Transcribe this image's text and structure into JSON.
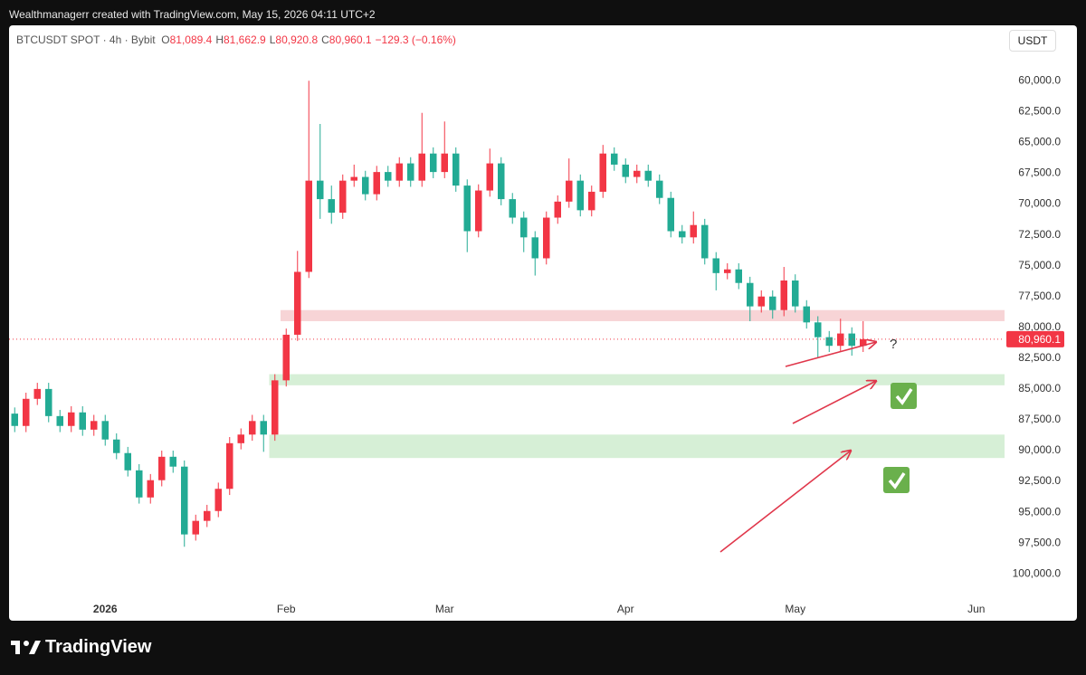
{
  "header": {
    "caption": "Wealthmanagerr created with TradingView.com, May 15, 2026 04:11 UTC+2"
  },
  "legend": {
    "symbol": "BTCUSDT SPOT · 4h · Bybit",
    "ohlc": [
      {
        "letter": "O",
        "value": 81089.4,
        "label": "81,089.4"
      },
      {
        "letter": "H",
        "value": 81662.9,
        "label": "81,662.9"
      },
      {
        "letter": "L",
        "value": 80920.8,
        "label": "80,920.8"
      },
      {
        "letter": "C",
        "value": 80960.1,
        "label": "80,960.1"
      }
    ],
    "change": "−129.3 (−0.16%)"
  },
  "currency": "USDT",
  "footer": {
    "brand": "TradingView"
  },
  "chart_data": {
    "type": "candlestick",
    "categories": [
      null,
      null,
      null,
      null,
      null,
      null,
      null,
      null,
      "2026",
      null,
      null,
      null,
      null,
      null,
      null,
      null,
      null,
      null,
      null,
      null,
      null,
      null,
      null,
      null,
      "Feb",
      null,
      null,
      null,
      null,
      null,
      null,
      null,
      null,
      null,
      null,
      null,
      null,
      null,
      "Mar",
      null,
      null,
      null,
      null,
      null,
      null,
      null,
      null,
      null,
      null,
      null,
      null,
      null,
      null,
      null,
      "Apr",
      null,
      null,
      null,
      null,
      null,
      null,
      null,
      null,
      null,
      null,
      null,
      null,
      null,
      null,
      "May",
      null,
      null,
      null,
      null,
      null,
      null,
      null,
      null,
      null,
      null,
      null,
      null,
      null,
      null,
      null,
      "Jun",
      null,
      null
    ],
    "open": [
      87000,
      88000,
      85800,
      85000,
      87200,
      88000,
      86900,
      88300,
      87600,
      89100,
      90200,
      91600,
      93800,
      92400,
      90500,
      91300,
      96800,
      95700,
      94900,
      93100,
      89400,
      88700,
      87600,
      88700,
      84300,
      80600,
      75500,
      68100,
      69600,
      70700,
      68100,
      67800,
      69200,
      67400,
      68100,
      66700,
      68100,
      65900,
      67400,
      65900,
      68500,
      72200,
      68900,
      66700,
      69600,
      71100,
      72700,
      74400,
      71100,
      69800,
      68100,
      70500,
      69000,
      65900,
      66800,
      67800,
      67300,
      68100,
      69500,
      72200,
      72700,
      71700,
      74400,
      75600,
      75300,
      76400,
      78300,
      77500,
      78600,
      76200,
      78300,
      79600,
      80800,
      81500,
      80500,
      81500,
      null,
      null,
      null,
      null,
      null,
      null,
      null,
      null,
      null,
      null,
      null,
      null
    ],
    "high": [
      88500,
      88500,
      86300,
      87700,
      88500,
      88500,
      88800,
      88800,
      89600,
      90700,
      92100,
      94300,
      94300,
      92900,
      91800,
      97800,
      97300,
      96200,
      95400,
      93600,
      89900,
      89200,
      90100,
      89200,
      84800,
      81100,
      76000,
      71200,
      71600,
      71200,
      68600,
      69700,
      69700,
      68600,
      68600,
      68600,
      68600,
      67900,
      67900,
      69000,
      73900,
      72700,
      69400,
      70100,
      71600,
      73900,
      75800,
      74900,
      71600,
      70300,
      71000,
      71000,
      69500,
      67300,
      68300,
      68300,
      68600,
      70000,
      72700,
      73200,
      73200,
      74900,
      77000,
      76100,
      76900,
      79500,
      78800,
      79300,
      79100,
      78800,
      80100,
      82500,
      82000,
      82000,
      82300,
      82000,
      null,
      null,
      null,
      null,
      null,
      null,
      null,
      null,
      null,
      null,
      null,
      null
    ],
    "low": [
      86500,
      85300,
      84500,
      84500,
      86700,
      86400,
      86400,
      87100,
      87100,
      88600,
      89700,
      91100,
      91900,
      90000,
      90000,
      90800,
      95200,
      94400,
      92600,
      88900,
      88200,
      87100,
      87100,
      83800,
      80100,
      73800,
      60000,
      63500,
      68500,
      67600,
      66800,
      67300,
      66900,
      66900,
      66200,
      66200,
      62600,
      65400,
      63300,
      65400,
      68000,
      68400,
      65500,
      66200,
      69100,
      70600,
      72200,
      70600,
      69300,
      66300,
      67600,
      68500,
      65200,
      65400,
      66300,
      66800,
      66800,
      67600,
      69000,
      71700,
      70600,
      71200,
      73900,
      74800,
      74800,
      75900,
      77000,
      77000,
      75100,
      75700,
      77800,
      79100,
      80300,
      79300,
      80000,
      79500,
      null,
      null,
      null,
      null,
      null,
      null,
      null,
      null,
      null,
      null,
      null,
      null
    ],
    "close": [
      88000,
      85800,
      85000,
      87200,
      88000,
      86900,
      88300,
      87600,
      89100,
      90200,
      91600,
      93800,
      92400,
      90500,
      91300,
      96800,
      95700,
      94900,
      93100,
      89400,
      88700,
      87600,
      88700,
      84300,
      80600,
      75500,
      68100,
      69600,
      70700,
      68100,
      67800,
      69200,
      67400,
      68100,
      66700,
      68100,
      65900,
      67400,
      65900,
      68500,
      72200,
      68900,
      66700,
      69600,
      71100,
      72700,
      74400,
      71100,
      69800,
      68100,
      70500,
      69000,
      65900,
      66800,
      67800,
      67300,
      68100,
      69500,
      72200,
      72700,
      71700,
      74400,
      75600,
      75300,
      76400,
      78300,
      77500,
      78600,
      76200,
      78300,
      79600,
      80800,
      81500,
      80500,
      81500,
      80960,
      null,
      null,
      null,
      null,
      null,
      null,
      null,
      null,
      null,
      null,
      null,
      null
    ],
    "up_color": "#22ab94",
    "down_color": "#f23645",
    "ylim": [
      55500,
      103800
    ],
    "y_inverted": true,
    "grid": false,
    "yticks": [
      {
        "value": 60000,
        "label": "60,000.0"
      },
      {
        "value": 62500,
        "label": "62,500.0"
      },
      {
        "value": 65000,
        "label": "65,000.0"
      },
      {
        "value": 67500,
        "label": "67,500.0"
      },
      {
        "value": 70000,
        "label": "70,000.0"
      },
      {
        "value": 72500,
        "label": "72,500.0"
      },
      {
        "value": 75000,
        "label": "75,000.0"
      },
      {
        "value": 77500,
        "label": "77,500.0"
      },
      {
        "value": 80000,
        "label": "80,000.0"
      },
      {
        "value": 82500,
        "label": "82,500.0"
      },
      {
        "value": 85000,
        "label": "85,000.0"
      },
      {
        "value": 87500,
        "label": "87,500.0"
      },
      {
        "value": 90000,
        "label": "90,000.0"
      },
      {
        "value": 92500,
        "label": "92,500.0"
      },
      {
        "value": 95000,
        "label": "95,000.0"
      },
      {
        "value": 97500,
        "label": "97,500.0"
      },
      {
        "value": 100000,
        "label": "100,000.0"
      }
    ],
    "zones": [
      {
        "from": 78600,
        "to": 79500,
        "start": 24,
        "color": "#f7d4d6"
      },
      {
        "from": 83800,
        "to": 84700,
        "start": 23,
        "color": "#d6efd6"
      },
      {
        "from": 88700,
        "to": 90600,
        "start": 23,
        "color": "#d6efd6"
      }
    ],
    "last_price": {
      "value": 80960.1,
      "label": "80,960.1",
      "color": "#f23645"
    },
    "annotation": "?"
  }
}
